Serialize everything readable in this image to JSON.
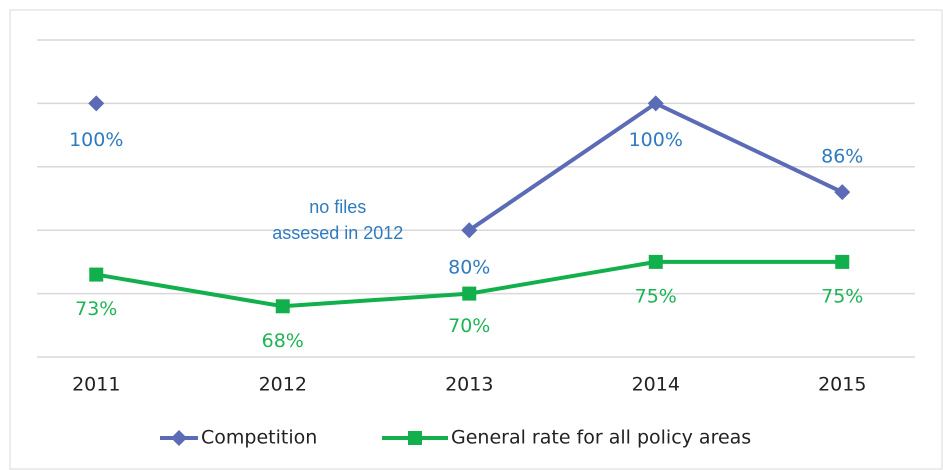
{
  "chart_data": {
    "type": "line",
    "categories": [
      "2011",
      "2012",
      "2013",
      "2014",
      "2015"
    ],
    "series": [
      {
        "name": "Competition",
        "color": "#5b6bb5",
        "label_color": "#2e7bbf",
        "marker": "diamond",
        "values": [
          100,
          null,
          80,
          100,
          86
        ],
        "value_labels": [
          "100%",
          null,
          "80%",
          "100%",
          "86%"
        ]
      },
      {
        "name": "General rate for all policy areas",
        "color": "#12b04c",
        "label_color": "#1fb455",
        "marker": "square",
        "values": [
          73,
          68,
          70,
          75,
          75
        ],
        "value_labels": [
          "73%",
          "68%",
          "70%",
          "75%",
          "75%"
        ]
      }
    ],
    "annotations": [
      {
        "text": [
          "no files",
          "assesed in 2012"
        ],
        "category": 1,
        "value": 83.5
      }
    ],
    "ylim": [
      60,
      110
    ],
    "yticks": [
      60,
      70,
      80,
      90,
      100,
      110
    ],
    "grid": true,
    "legend": "bottom"
  }
}
